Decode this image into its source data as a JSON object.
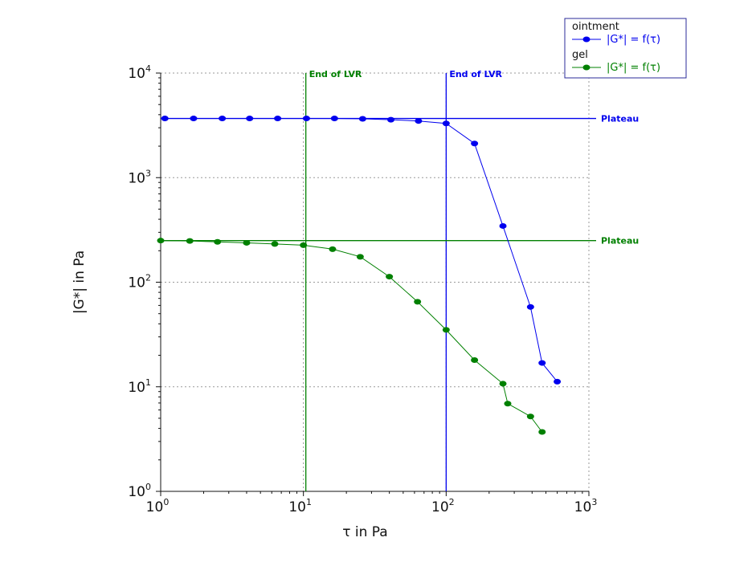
{
  "chart_data": {
    "type": "line",
    "xscale": "log",
    "yscale": "log",
    "xlim": [
      1,
      1000
    ],
    "ylim": [
      1,
      10000
    ],
    "x_ticks": [
      1,
      10,
      100,
      1000
    ],
    "y_ticks": [
      1,
      10,
      100,
      1000,
      10000
    ],
    "xlabel": "τ in Pa",
    "ylabel": "|G*| in Pa",
    "grid": true,
    "legend_position": "top-right",
    "series": [
      {
        "group": "ointment",
        "name": "|G*| = f(τ)",
        "color": "#0000ee",
        "marker": "circle",
        "x": [
          1.07,
          1.7,
          2.7,
          4.2,
          6.6,
          10.5,
          16.5,
          26,
          41,
          64,
          100,
          158,
          250,
          390,
          470,
          600
        ],
        "y": [
          3680,
          3680,
          3680,
          3680,
          3680,
          3680,
          3680,
          3650,
          3580,
          3480,
          3300,
          2120,
          345,
          58,
          16.9,
          11.2
        ]
      },
      {
        "group": "gel",
        "name": "|G*| = f(τ)",
        "color": "#008000",
        "marker": "circle",
        "x": [
          1.0,
          1.6,
          2.5,
          4.0,
          6.3,
          10,
          16,
          25,
          40,
          63,
          100,
          158,
          250,
          270,
          390,
          470
        ],
        "y": [
          250,
          248,
          243,
          238,
          232,
          226,
          207,
          175,
          113,
          65,
          35,
          18,
          10.7,
          6.9,
          5.2,
          3.7
        ]
      }
    ],
    "reference_lines": [
      {
        "orientation": "vertical",
        "value": 10.4,
        "label": "End of LVR",
        "color": "#008000"
      },
      {
        "orientation": "vertical",
        "value": 100,
        "label": "End of LVR",
        "color": "#0000ee"
      },
      {
        "orientation": "horizontal",
        "value": 3680,
        "label": "Plateau",
        "color": "#0000ee"
      },
      {
        "orientation": "horizontal",
        "value": 250,
        "label": "Plateau",
        "color": "#008000"
      }
    ]
  }
}
